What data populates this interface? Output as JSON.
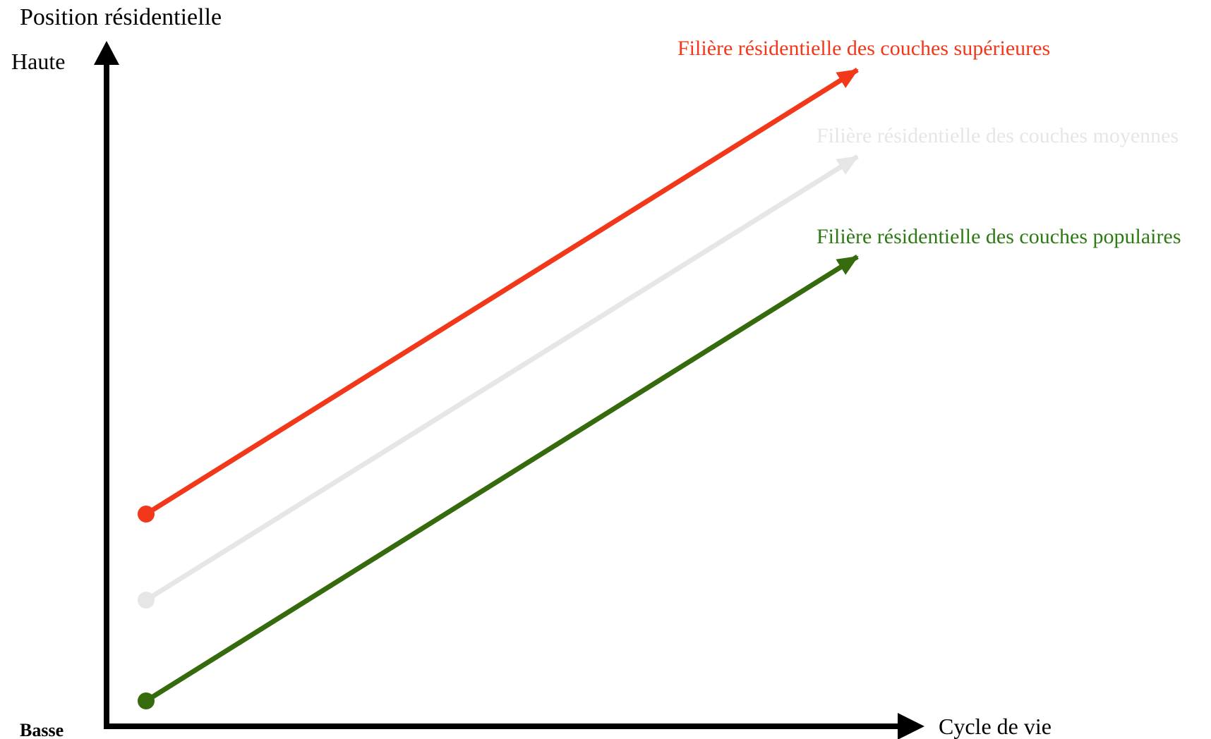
{
  "axes": {
    "y_title": "Position résidentielle",
    "y_high": "Haute",
    "y_low": "Basse",
    "x_title": "Cycle de vie"
  },
  "lines": [
    {
      "id": "superieures",
      "label": "Filière résidentielle des couches supérieures",
      "color": "#f2381a"
    },
    {
      "id": "moyennes",
      "label": "Filière résidentielle des couches moyennes",
      "color": "#e6e6e6"
    },
    {
      "id": "populaires",
      "label": "Filière résidentielle des couches populaires",
      "color": "#356b0c",
      "label_color": "#2b7a12"
    }
  ],
  "axis_color": "#000000",
  "icons": {
    "y_axis_arrow": "arrow-up-icon",
    "x_axis_arrow": "arrow-right-icon"
  }
}
